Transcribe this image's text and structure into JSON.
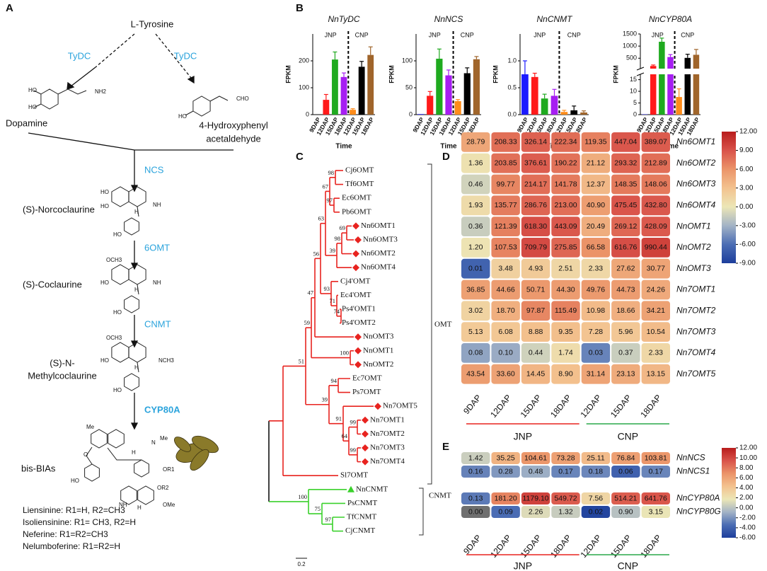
{
  "panel_labels": [
    "A",
    "B",
    "C",
    "D",
    "E"
  ],
  "pathway": {
    "precursor": "L-Tyrosine",
    "enzymes": [
      "TyDC",
      "TyDC",
      "NCS",
      "6OMT",
      "CNMT",
      "CYP80A"
    ],
    "compounds": [
      "Dopamine",
      "4-Hydroxyphenyl",
      "acetaldehyde",
      "(S)-Norcoclaurine",
      "(S)-Coclaurine",
      "(S)-N-",
      "Methylcoclaurine",
      "bis-BIAs"
    ],
    "structures": [
      [
        "HO",
        "HO",
        "NH2"
      ],
      [
        "HO",
        "CHO"
      ],
      [
        "HO",
        "HO",
        "NH",
        "H",
        "HO"
      ],
      [
        "OCH3",
        "HO",
        "NH",
        "H",
        "HO"
      ],
      [
        "OCH3",
        "HO",
        "NCH3",
        "H",
        "HO"
      ],
      [
        "Me",
        "O",
        "N",
        "Me",
        "H",
        "HO",
        "OR1",
        "NH",
        "OR2",
        "OMe",
        "H"
      ]
    ],
    "products": [
      "Liensinine: R1=H, R2=CH3",
      "Isoliensinine: R1= CH3, R2=H",
      "Neferine: R1=R2=CH3",
      "Nelumboferine: R1=R2=H"
    ]
  },
  "tree": {
    "leaves": [
      "Cj6OMT",
      "Tf6OMT",
      "Ec6OMT",
      "Pb6OMT",
      "Nn6OMT1",
      "Nn6OMT3",
      "Nn6OMT2",
      "Nn6OMT4",
      "Cj4'OMT",
      "Ec4'OMT",
      "Ps4'OMT1",
      "Ps4'OMT2",
      "NnOMT3",
      "NnOMT1",
      "NnOMT2",
      "Ec7OMT",
      "Ps7OMT",
      "Nn7OMT5",
      "Nn7OMT1",
      "Nn7OMT2",
      "Nn7OMT3",
      "Nn7OMT4",
      "Sl7OMT",
      "NnCNMT",
      "PsCNMT",
      "TfCNMT",
      "CjCNMT"
    ],
    "bootstraps": [
      98,
      97,
      67,
      69,
      98,
      39,
      63,
      74,
      71,
      93,
      56,
      47,
      100,
      59,
      94,
      99,
      99,
      64,
      91,
      39,
      51,
      97,
      75,
      100
    ],
    "clades": [
      {
        "name": "OMT",
        "color": "#e8231f"
      },
      {
        "name": "CNMT",
        "color": "#3ad12c"
      }
    ],
    "scale": 0.2
  },
  "chart_data": [
    {
      "type": "bar",
      "title": "NnTyDC",
      "ylabel": "FPKM",
      "xlabel": "Time",
      "ylim": [
        0,
        300
      ],
      "yticks": [
        0,
        100,
        200
      ],
      "groups": [
        {
          "name": "JNP",
          "categories": [
            "9DAP",
            "12DAP",
            "15DAP",
            "18DAP"
          ],
          "values": [
            0,
            55,
            205,
            140
          ],
          "errors": [
            0,
            20,
            28,
            15
          ],
          "colors": [
            "#1a1aff",
            "#ff1a1a",
            "#1faa1f",
            "#a61ef2"
          ]
        },
        {
          "name": "CNP",
          "categories": [
            "12DAP",
            "15DAP",
            "18DAP"
          ],
          "values": [
            18,
            178,
            222
          ],
          "errors": [
            4,
            20,
            30
          ],
          "colors": [
            "#ff8c1a",
            "#000000",
            "#a0652b"
          ]
        }
      ]
    },
    {
      "type": "bar",
      "title": "NnNCS",
      "ylabel": "FPKM",
      "xlabel": "Time",
      "ylim": [
        0,
        150
      ],
      "yticks": [
        0,
        50,
        100
      ],
      "groups": [
        {
          "name": "JNP",
          "categories": [
            "9DAP",
            "12DAP",
            "15DAP",
            "18DAP"
          ],
          "values": [
            1,
            35,
            104,
            73
          ],
          "errors": [
            0,
            8,
            18,
            10
          ],
          "colors": [
            "#1a1aff",
            "#ff1a1a",
            "#1faa1f",
            "#a61ef2"
          ]
        },
        {
          "name": "CNP",
          "categories": [
            "12DAP",
            "15DAP",
            "18DAP"
          ],
          "values": [
            25,
            77,
            103
          ],
          "errors": [
            3,
            10,
            5
          ],
          "colors": [
            "#ff8c1a",
            "#000000",
            "#a0652b"
          ]
        }
      ]
    },
    {
      "type": "bar",
      "title": "NnCNMT",
      "ylabel": "FPKM",
      "xlabel": "Time",
      "ylim": [
        0,
        1.5
      ],
      "yticks": [
        {
          "value": 0,
          "label": "0.0"
        },
        {
          "value": 0.5,
          "label": "0.5"
        },
        {
          "value": 1,
          "label": "1.0"
        }
      ],
      "groups": [
        {
          "name": "JNP",
          "categories": [
            "9DAP",
            "12DAP",
            "15DAP",
            "18DAP"
          ],
          "values": [
            0.75,
            0.7,
            0.3,
            0.35
          ],
          "errors": [
            0.25,
            0.07,
            0.08,
            0.12
          ],
          "colors": [
            "#1a1aff",
            "#ff1a1a",
            "#1faa1f",
            "#a61ef2"
          ]
        },
        {
          "name": "CNP",
          "categories": [
            "12DAP",
            "15DAP",
            "18DAP"
          ],
          "values": [
            0.05,
            0.08,
            0.04
          ],
          "errors": [
            0.03,
            0.08,
            0.03
          ],
          "colors": [
            "#ff8c1a",
            "#000000",
            "#a0652b"
          ]
        }
      ]
    },
    {
      "type": "bar",
      "title": "NnCYP80A",
      "ylabel": "FPKM",
      "xlabel": "Time",
      "ylim": [
        0,
        1500
      ],
      "ybreak": [
        17,
        100
      ],
      "yticks": [
        0,
        5,
        10,
        15,
        500,
        1000,
        1500
      ],
      "groups": [
        {
          "name": "JNP",
          "categories": [
            "9DAP",
            "12DAP",
            "15DAP",
            "18DAP"
          ],
          "values": [
            0.13,
            181,
            1179,
            550
          ],
          "errors": [
            0,
            40,
            150,
            100
          ],
          "colors": [
            "#1a1aff",
            "#ff1a1a",
            "#1faa1f",
            "#a61ef2"
          ]
        },
        {
          "name": "CNP",
          "categories": [
            "12DAP",
            "15DAP",
            "18DAP"
          ],
          "values": [
            7.56,
            514,
            642
          ],
          "errors": [
            3.5,
            150,
            220
          ],
          "colors": [
            "#ff8c1a",
            "#000000",
            "#a0652b"
          ]
        }
      ]
    },
    {
      "type": "heatmap",
      "color_scale": "log2",
      "clim": [
        -9,
        12
      ],
      "colors": [
        "#1d3e9c",
        "#4b6db4",
        "#a3b3c6",
        "#ece6b6",
        "#f3c28f",
        "#eb9469",
        "#d9534a",
        "#b81c1c"
      ],
      "colorbar_ticks": [
        {
          "value": 12,
          "label": "12.00"
        },
        {
          "value": 9,
          "label": "9.00"
        },
        {
          "value": 6,
          "label": "6.00"
        },
        {
          "value": 3,
          "label": "3.00"
        },
        {
          "value": 0,
          "label": "0.00"
        },
        {
          "value": -3,
          "label": "-3.00"
        },
        {
          "value": -6,
          "label": "-6.00"
        },
        {
          "value": -9,
          "label": "-9.00"
        }
      ],
      "rows": [
        "Nn6OMT1",
        "Nn6OMT2",
        "Nn6OMT3",
        "Nn6OMT4",
        "NnOMT1",
        "NnOMT2",
        "NnOMT3",
        "Nn7OMT1",
        "Nn7OMT2",
        "Nn7OMT3",
        "Nn7OMT4",
        "Nn7OMT5"
      ],
      "column_groups": [
        {
          "name": "JNP",
          "color": "#e8231f",
          "columns": [
            "9DAP",
            "12DAP",
            "15DAP",
            "18DAP"
          ]
        },
        {
          "name": "CNP",
          "color": "#2aa84a",
          "columns": [
            "12DAP",
            "15DAP",
            "18DAP"
          ]
        }
      ],
      "values": [
        [
          28.79,
          208.33,
          326.14,
          222.34,
          119.35,
          447.04,
          389.07
        ],
        [
          1.36,
          203.85,
          376.61,
          190.22,
          21.12,
          293.32,
          212.89
        ],
        [
          0.46,
          99.77,
          214.17,
          141.78,
          12.37,
          148.35,
          148.06
        ],
        [
          1.93,
          135.77,
          286.76,
          213.0,
          40.9,
          475.45,
          432.8
        ],
        [
          0.36,
          121.39,
          618.3,
          443.09,
          20.49,
          269.12,
          428.09
        ],
        [
          1.2,
          107.53,
          709.79,
          275.85,
          66.58,
          616.76,
          990.44
        ],
        [
          0.01,
          3.48,
          4.93,
          2.51,
          2.33,
          27.62,
          30.77
        ],
        [
          36.85,
          44.66,
          50.71,
          44.3,
          49.76,
          44.73,
          24.26
        ],
        [
          3.02,
          18.7,
          97.87,
          115.49,
          10.98,
          18.66,
          34.21
        ],
        [
          5.13,
          6.08,
          8.88,
          9.35,
          7.28,
          5.96,
          10.54
        ],
        [
          0.08,
          0.1,
          0.44,
          1.74,
          0.03,
          0.37,
          2.33
        ],
        [
          43.54,
          33.6,
          14.45,
          8.9,
          31.14,
          23.13,
          13.15
        ]
      ],
      "value_labels": [
        [
          "28.79",
          "208.33",
          "326.14",
          "222.34",
          "119.35",
          "447.04",
          "389.07"
        ],
        [
          "1.36",
          "203.85",
          "376.61",
          "190.22",
          "21.12",
          "293.32",
          "212.89"
        ],
        [
          "0.46",
          "99.77",
          "214.17",
          "141.78",
          "12.37",
          "148.35",
          "148.06"
        ],
        [
          "1.93",
          "135.77",
          "286.76",
          "213.00",
          "40.90",
          "475.45",
          "432.80"
        ],
        [
          "0.36",
          "121.39",
          "618.30",
          "443.09",
          "20.49",
          "269.12",
          "428.09"
        ],
        [
          "1.20",
          "107.53",
          "709.79",
          "275.85",
          "66.58",
          "616.76",
          "990.44"
        ],
        [
          "0.01",
          "3.48",
          "4.93",
          "2.51",
          "2.33",
          "27.62",
          "30.77"
        ],
        [
          "36.85",
          "44.66",
          "50.71",
          "44.30",
          "49.76",
          "44.73",
          "24.26"
        ],
        [
          "3.02",
          "18.70",
          "97.87",
          "115.49",
          "10.98",
          "18.66",
          "34.21"
        ],
        [
          "5.13",
          "6.08",
          "8.88",
          "9.35",
          "7.28",
          "5.96",
          "10.54"
        ],
        [
          "0.08",
          "0.10",
          "0.44",
          "1.74",
          "0.03",
          "0.37",
          "2.33"
        ],
        [
          "43.54",
          "33.60",
          "14.45",
          "8.90",
          "31.14",
          "23.13",
          "13.15"
        ]
      ]
    },
    {
      "type": "heatmap",
      "color_scale": "log2",
      "clim": [
        -6,
        12
      ],
      "colors": [
        "#1d3e9c",
        "#4b6db4",
        "#a3b3c6",
        "#ece6b6",
        "#f3c28f",
        "#eb9469",
        "#d9534a",
        "#b81c1c"
      ],
      "colorbar_ticks": [
        {
          "value": 12,
          "label": "12.00"
        },
        {
          "value": 10,
          "label": "10.00"
        },
        {
          "value": 8,
          "label": "8.00"
        },
        {
          "value": 6,
          "label": "6.00"
        },
        {
          "value": 4,
          "label": "4.00"
        },
        {
          "value": 2,
          "label": "2.00"
        },
        {
          "value": 0,
          "label": "0.00"
        },
        {
          "value": -2,
          "label": "-2.00"
        },
        {
          "value": -4,
          "label": "-4.00"
        },
        {
          "value": -6,
          "label": "-6.00"
        }
      ],
      "rows": [
        "NnNCS",
        "NnNCS1",
        "NnCYP80A",
        "NnCYP80G"
      ],
      "column_groups": [
        {
          "name": "JNP",
          "color": "#e8231f",
          "columns": [
            "9DAP",
            "12DAP",
            "15DAP",
            "18DAP"
          ]
        },
        {
          "name": "CNP",
          "color": "#2aa84a",
          "columns": [
            "12DAP",
            "15DAP",
            "18DAP"
          ]
        }
      ],
      "values": [
        [
          1.42,
          35.25,
          104.61,
          73.28,
          25.11,
          76.84,
          103.81
        ],
        [
          0.16,
          0.28,
          0.48,
          0.17,
          0.18,
          0.06,
          0.17
        ],
        [
          0.13,
          181.2,
          1179.1,
          549.72,
          7.56,
          514.21,
          641.76
        ],
        [
          0,
          0.09,
          2.26,
          1.32,
          0.02,
          0.9,
          3.15
        ]
      ],
      "value_labels": [
        [
          "1.42",
          "35.25",
          "104.61",
          "73.28",
          "25.11",
          "76.84",
          "103.81"
        ],
        [
          "0.16",
          "0.28",
          "0.48",
          "0.17",
          "0.18",
          "0.06",
          "0.17"
        ],
        [
          "0.13",
          "181.20",
          "1179.10",
          "549.72",
          "7.56",
          "514.21",
          "641.76"
        ],
        [
          "0.00",
          "0.09",
          "2.26",
          "1.32",
          "0.02",
          "0.90",
          "3.15"
        ]
      ]
    }
  ]
}
